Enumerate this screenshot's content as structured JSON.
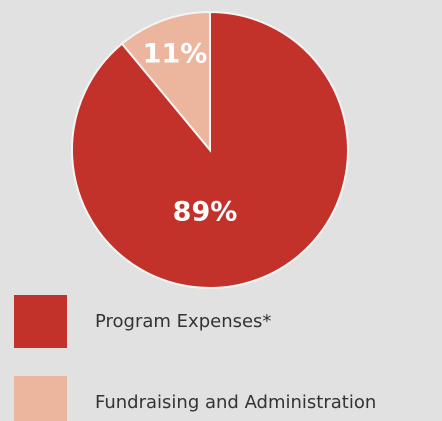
{
  "chart_data": {
    "type": "pie",
    "categories": [
      "Program Expenses*",
      "Fundraising and Administration"
    ],
    "values": [
      89,
      11
    ],
    "value_labels": [
      "89%",
      "11%"
    ],
    "colors": [
      "#c2312a",
      "#ecb59d"
    ]
  }
}
